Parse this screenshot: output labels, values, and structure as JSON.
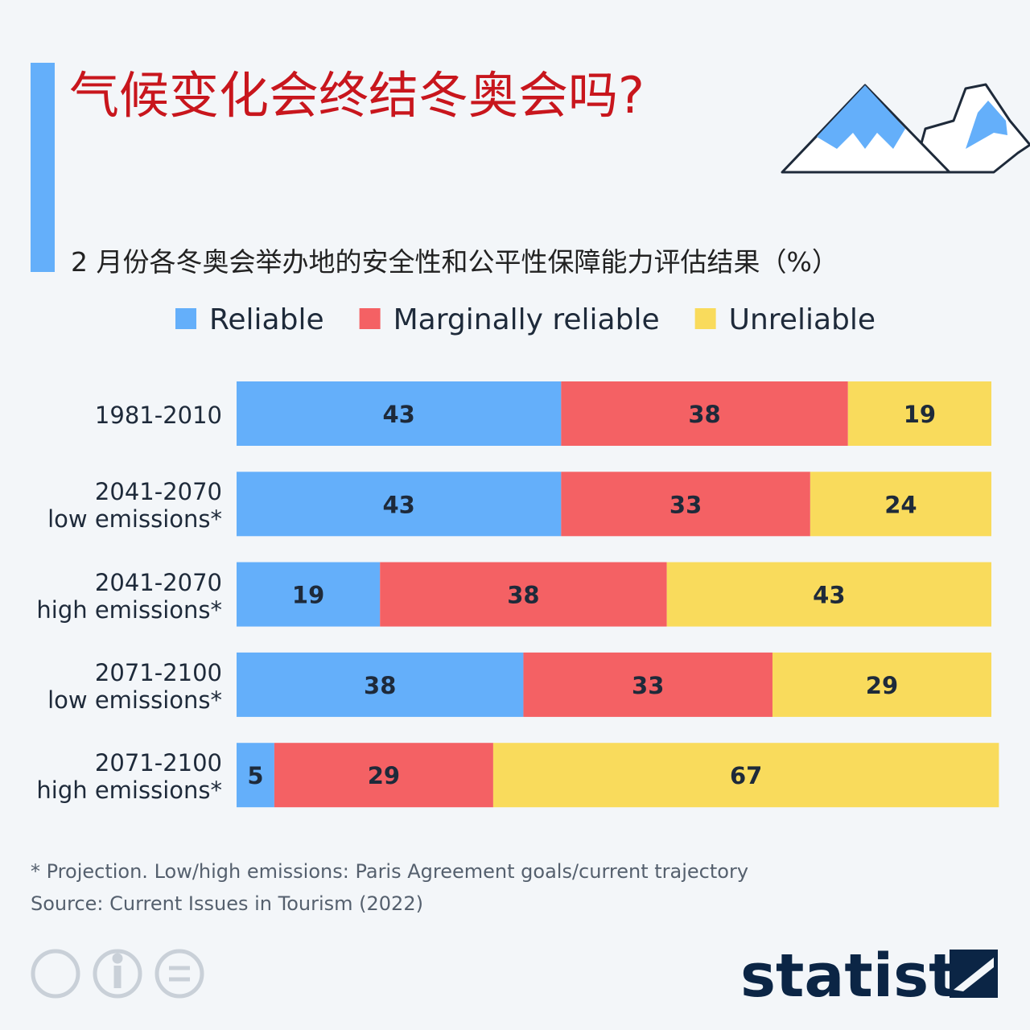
{
  "title": "气候变化会终结冬奥会吗?",
  "subtitle": "2 月份各冬奥会举办地的安全性和公平性保障能力评估结果（%）",
  "footnote": "* Projection. Low/high emissions: Paris Agreement goals/current trajectory",
  "source": "Source: Current Issues in Tourism (2022)",
  "logo": "statista",
  "chart_data": {
    "type": "stacked-bar-horizontal",
    "categories": [
      "1981-2010",
      "2041-2070\nlow emissions*",
      "2041-2070\nhigh emissions*",
      "2071-2100\nlow emissions*",
      "2071-2100\nhigh emissions*"
    ],
    "series": [
      {
        "name": "Reliable",
        "color": "#64affa",
        "values": [
          43,
          43,
          19,
          38,
          5
        ]
      },
      {
        "name": "Marginally reliable",
        "color": "#f46164",
        "values": [
          38,
          33,
          38,
          33,
          29
        ]
      },
      {
        "name": "Unreliable",
        "color": "#f9db5c",
        "values": [
          19,
          24,
          43,
          29,
          67
        ]
      }
    ],
    "legend": "top"
  }
}
